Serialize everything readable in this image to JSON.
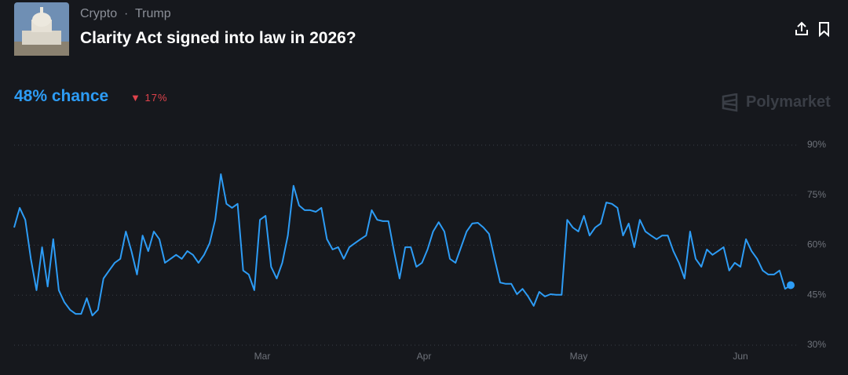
{
  "header": {
    "categories": [
      "Crypto",
      "Trump"
    ],
    "title": "Clarity Act signed into law in 2026?"
  },
  "chance": {
    "label": "48% chance",
    "change": "17%"
  },
  "brand": "Polymarket",
  "chart_data": {
    "type": "line",
    "x_labels": [
      "Mar",
      "Apr",
      "May",
      "Jun"
    ],
    "series": [
      {
        "color": "#2d9cf5",
        "values": [
          65.3,
          71.2,
          67.6,
          55.9,
          46.5,
          59.4,
          47.6,
          61.8,
          46.5,
          42.9,
          40.6,
          39.4,
          39.4,
          44.1,
          38.9,
          40.6,
          50,
          52.4,
          54.7,
          55.9,
          64.1,
          58.2,
          51.2,
          62.9,
          58.2,
          64.1,
          61.8,
          54.7,
          55.9,
          57.1,
          55.9,
          58.2,
          57.1,
          54.7,
          57.1,
          60.6,
          67.6,
          81.3,
          72.4,
          71.2,
          72.4,
          52.4,
          51.2,
          46.5,
          67.6,
          68.8,
          53.5,
          50,
          54.7,
          62.9,
          77.8,
          71.9,
          70.5,
          70.5,
          70,
          71.2,
          61.8,
          58.7,
          59.4,
          55.9,
          59.4,
          60.6,
          61.8,
          62.9,
          70.5,
          67.6,
          67.2,
          67.2,
          58.2,
          50,
          59.4,
          59.4,
          53.5,
          54.7,
          58.7,
          64.1,
          66.9,
          64.1,
          55.9,
          54.7,
          59.4,
          64.1,
          66.5,
          66.7,
          65.3,
          63.4,
          55.9,
          48.8,
          48.4,
          48.4,
          45.3,
          46.9,
          44.6,
          41.8,
          46,
          44.6,
          45.3,
          45.1,
          45.1,
          67.6,
          65.3,
          64.1,
          68.8,
          62.9,
          65.3,
          66.5,
          72.8,
          72.4,
          71.2,
          62.9,
          66.5,
          59.4,
          67.6,
          64.1,
          62.9,
          61.8,
          62.9,
          62.9,
          58.2,
          54.7,
          50,
          64.1,
          55.9,
          53.5,
          58.7,
          57.1,
          58.2,
          59.4,
          52.4,
          54.7,
          53.5,
          61.8,
          58.2,
          55.9,
          52.4,
          51.2,
          51.2,
          52.4,
          46.9,
          48
        ]
      }
    ],
    "ylim": [
      30,
      90
    ],
    "yticks": [
      {
        "value": 30,
        "label": "30%"
      },
      {
        "value": 45,
        "label": "45%"
      },
      {
        "value": 60,
        "label": "60%"
      },
      {
        "value": 75,
        "label": "75%"
      },
      {
        "value": 90,
        "label": "90%"
      }
    ],
    "grid": true
  }
}
